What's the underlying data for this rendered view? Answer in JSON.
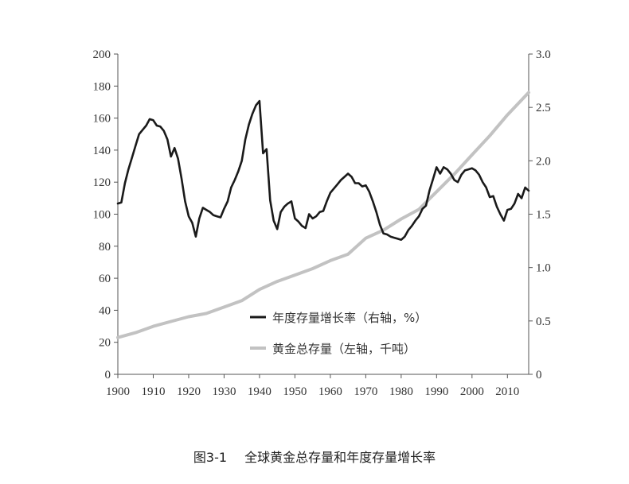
{
  "chart_data": {
    "type": "line",
    "caption": {
      "figure_number": "图3-1",
      "title": "全球黄金总存量和年度存量增长率"
    },
    "x_axis": {
      "range": [
        1900,
        2016
      ],
      "ticks": [
        1900,
        1910,
        1920,
        1930,
        1940,
        1950,
        1960,
        1970,
        1980,
        1990,
        2000,
        2010
      ]
    },
    "y_left": {
      "range": [
        0,
        200
      ],
      "ticks": [
        0,
        20,
        40,
        60,
        80,
        100,
        120,
        140,
        160,
        180,
        200
      ]
    },
    "y_right": {
      "range": [
        0,
        3.0
      ],
      "ticks": [
        "0",
        "0.5",
        "1.0",
        "1.5",
        "2.0",
        "2.5",
        "3.0"
      ]
    },
    "legend": {
      "placement": "center-bottom"
    },
    "series": [
      {
        "name": "年度存量增长率（右轴，%）",
        "axis": "right",
        "color": "#1a1a1a",
        "points": [
          [
            1900,
            1.6
          ],
          [
            1901,
            1.61
          ],
          [
            1902,
            1.79
          ],
          [
            1903,
            1.92
          ],
          [
            1904,
            2.03
          ],
          [
            1905,
            2.14
          ],
          [
            1906,
            2.25
          ],
          [
            1907,
            2.29
          ],
          [
            1908,
            2.33
          ],
          [
            1909,
            2.39
          ],
          [
            1910,
            2.38
          ],
          [
            1911,
            2.33
          ],
          [
            1912,
            2.32
          ],
          [
            1913,
            2.28
          ],
          [
            1914,
            2.2
          ],
          [
            1915,
            2.04
          ],
          [
            1916,
            2.12
          ],
          [
            1917,
            2.02
          ],
          [
            1918,
            1.83
          ],
          [
            1919,
            1.62
          ],
          [
            1920,
            1.48
          ],
          [
            1921,
            1.42
          ],
          [
            1922,
            1.29
          ],
          [
            1923,
            1.46
          ],
          [
            1924,
            1.56
          ],
          [
            1925,
            1.54
          ],
          [
            1926,
            1.52
          ],
          [
            1927,
            1.49
          ],
          [
            1928,
            1.48
          ],
          [
            1929,
            1.47
          ],
          [
            1930,
            1.55
          ],
          [
            1931,
            1.62
          ],
          [
            1932,
            1.75
          ],
          [
            1933,
            1.82
          ],
          [
            1934,
            1.9
          ],
          [
            1935,
            2.0
          ],
          [
            1936,
            2.2
          ],
          [
            1937,
            2.34
          ],
          [
            1938,
            2.44
          ],
          [
            1939,
            2.52
          ],
          [
            1940,
            2.56
          ],
          [
            1941,
            2.07
          ],
          [
            1942,
            2.11
          ],
          [
            1943,
            1.63
          ],
          [
            1944,
            1.44
          ],
          [
            1945,
            1.36
          ],
          [
            1946,
            1.52
          ],
          [
            1947,
            1.57
          ],
          [
            1948,
            1.6
          ],
          [
            1949,
            1.62
          ],
          [
            1950,
            1.46
          ],
          [
            1951,
            1.43
          ],
          [
            1952,
            1.39
          ],
          [
            1953,
            1.37
          ],
          [
            1954,
            1.5
          ],
          [
            1955,
            1.46
          ],
          [
            1956,
            1.48
          ],
          [
            1957,
            1.52
          ],
          [
            1958,
            1.53
          ],
          [
            1959,
            1.62
          ],
          [
            1960,
            1.7
          ],
          [
            1961,
            1.74
          ],
          [
            1962,
            1.78
          ],
          [
            1963,
            1.82
          ],
          [
            1964,
            1.85
          ],
          [
            1965,
            1.88
          ],
          [
            1966,
            1.85
          ],
          [
            1967,
            1.79
          ],
          [
            1968,
            1.79
          ],
          [
            1969,
            1.76
          ],
          [
            1970,
            1.77
          ],
          [
            1971,
            1.71
          ],
          [
            1972,
            1.62
          ],
          [
            1973,
            1.52
          ],
          [
            1974,
            1.4
          ],
          [
            1975,
            1.32
          ],
          [
            1976,
            1.31
          ],
          [
            1977,
            1.29
          ],
          [
            1978,
            1.28
          ],
          [
            1979,
            1.27
          ],
          [
            1980,
            1.26
          ],
          [
            1981,
            1.29
          ],
          [
            1982,
            1.35
          ],
          [
            1983,
            1.39
          ],
          [
            1984,
            1.44
          ],
          [
            1985,
            1.48
          ],
          [
            1986,
            1.55
          ],
          [
            1987,
            1.58
          ],
          [
            1988,
            1.72
          ],
          [
            1989,
            1.83
          ],
          [
            1990,
            1.94
          ],
          [
            1991,
            1.88
          ],
          [
            1992,
            1.94
          ],
          [
            1993,
            1.92
          ],
          [
            1994,
            1.88
          ],
          [
            1995,
            1.82
          ],
          [
            1996,
            1.8
          ],
          [
            1997,
            1.87
          ],
          [
            1998,
            1.91
          ],
          [
            1999,
            1.92
          ],
          [
            2000,
            1.93
          ],
          [
            2001,
            1.91
          ],
          [
            2002,
            1.87
          ],
          [
            2003,
            1.8
          ],
          [
            2004,
            1.75
          ],
          [
            2005,
            1.66
          ],
          [
            2006,
            1.67
          ],
          [
            2007,
            1.57
          ],
          [
            2008,
            1.5
          ],
          [
            2009,
            1.44
          ],
          [
            2010,
            1.54
          ],
          [
            2011,
            1.55
          ],
          [
            2012,
            1.6
          ],
          [
            2013,
            1.69
          ],
          [
            2014,
            1.65
          ],
          [
            2015,
            1.75
          ],
          [
            2016,
            1.72
          ]
        ]
      },
      {
        "name": "黄金总存量（左轴，千吨）",
        "axis": "left",
        "color": "#c2c2c2",
        "points": [
          [
            1900,
            23
          ],
          [
            1905,
            26
          ],
          [
            1910,
            30
          ],
          [
            1915,
            33
          ],
          [
            1920,
            36
          ],
          [
            1925,
            38
          ],
          [
            1930,
            42
          ],
          [
            1935,
            46
          ],
          [
            1940,
            53
          ],
          [
            1945,
            58
          ],
          [
            1950,
            62
          ],
          [
            1955,
            66
          ],
          [
            1960,
            71
          ],
          [
            1965,
            75
          ],
          [
            1970,
            85
          ],
          [
            1975,
            90
          ],
          [
            1980,
            97
          ],
          [
            1985,
            103
          ],
          [
            1990,
            114
          ],
          [
            1995,
            125
          ],
          [
            2000,
            137
          ],
          [
            2005,
            149
          ],
          [
            2010,
            162
          ],
          [
            2016,
            176
          ]
        ]
      }
    ]
  }
}
